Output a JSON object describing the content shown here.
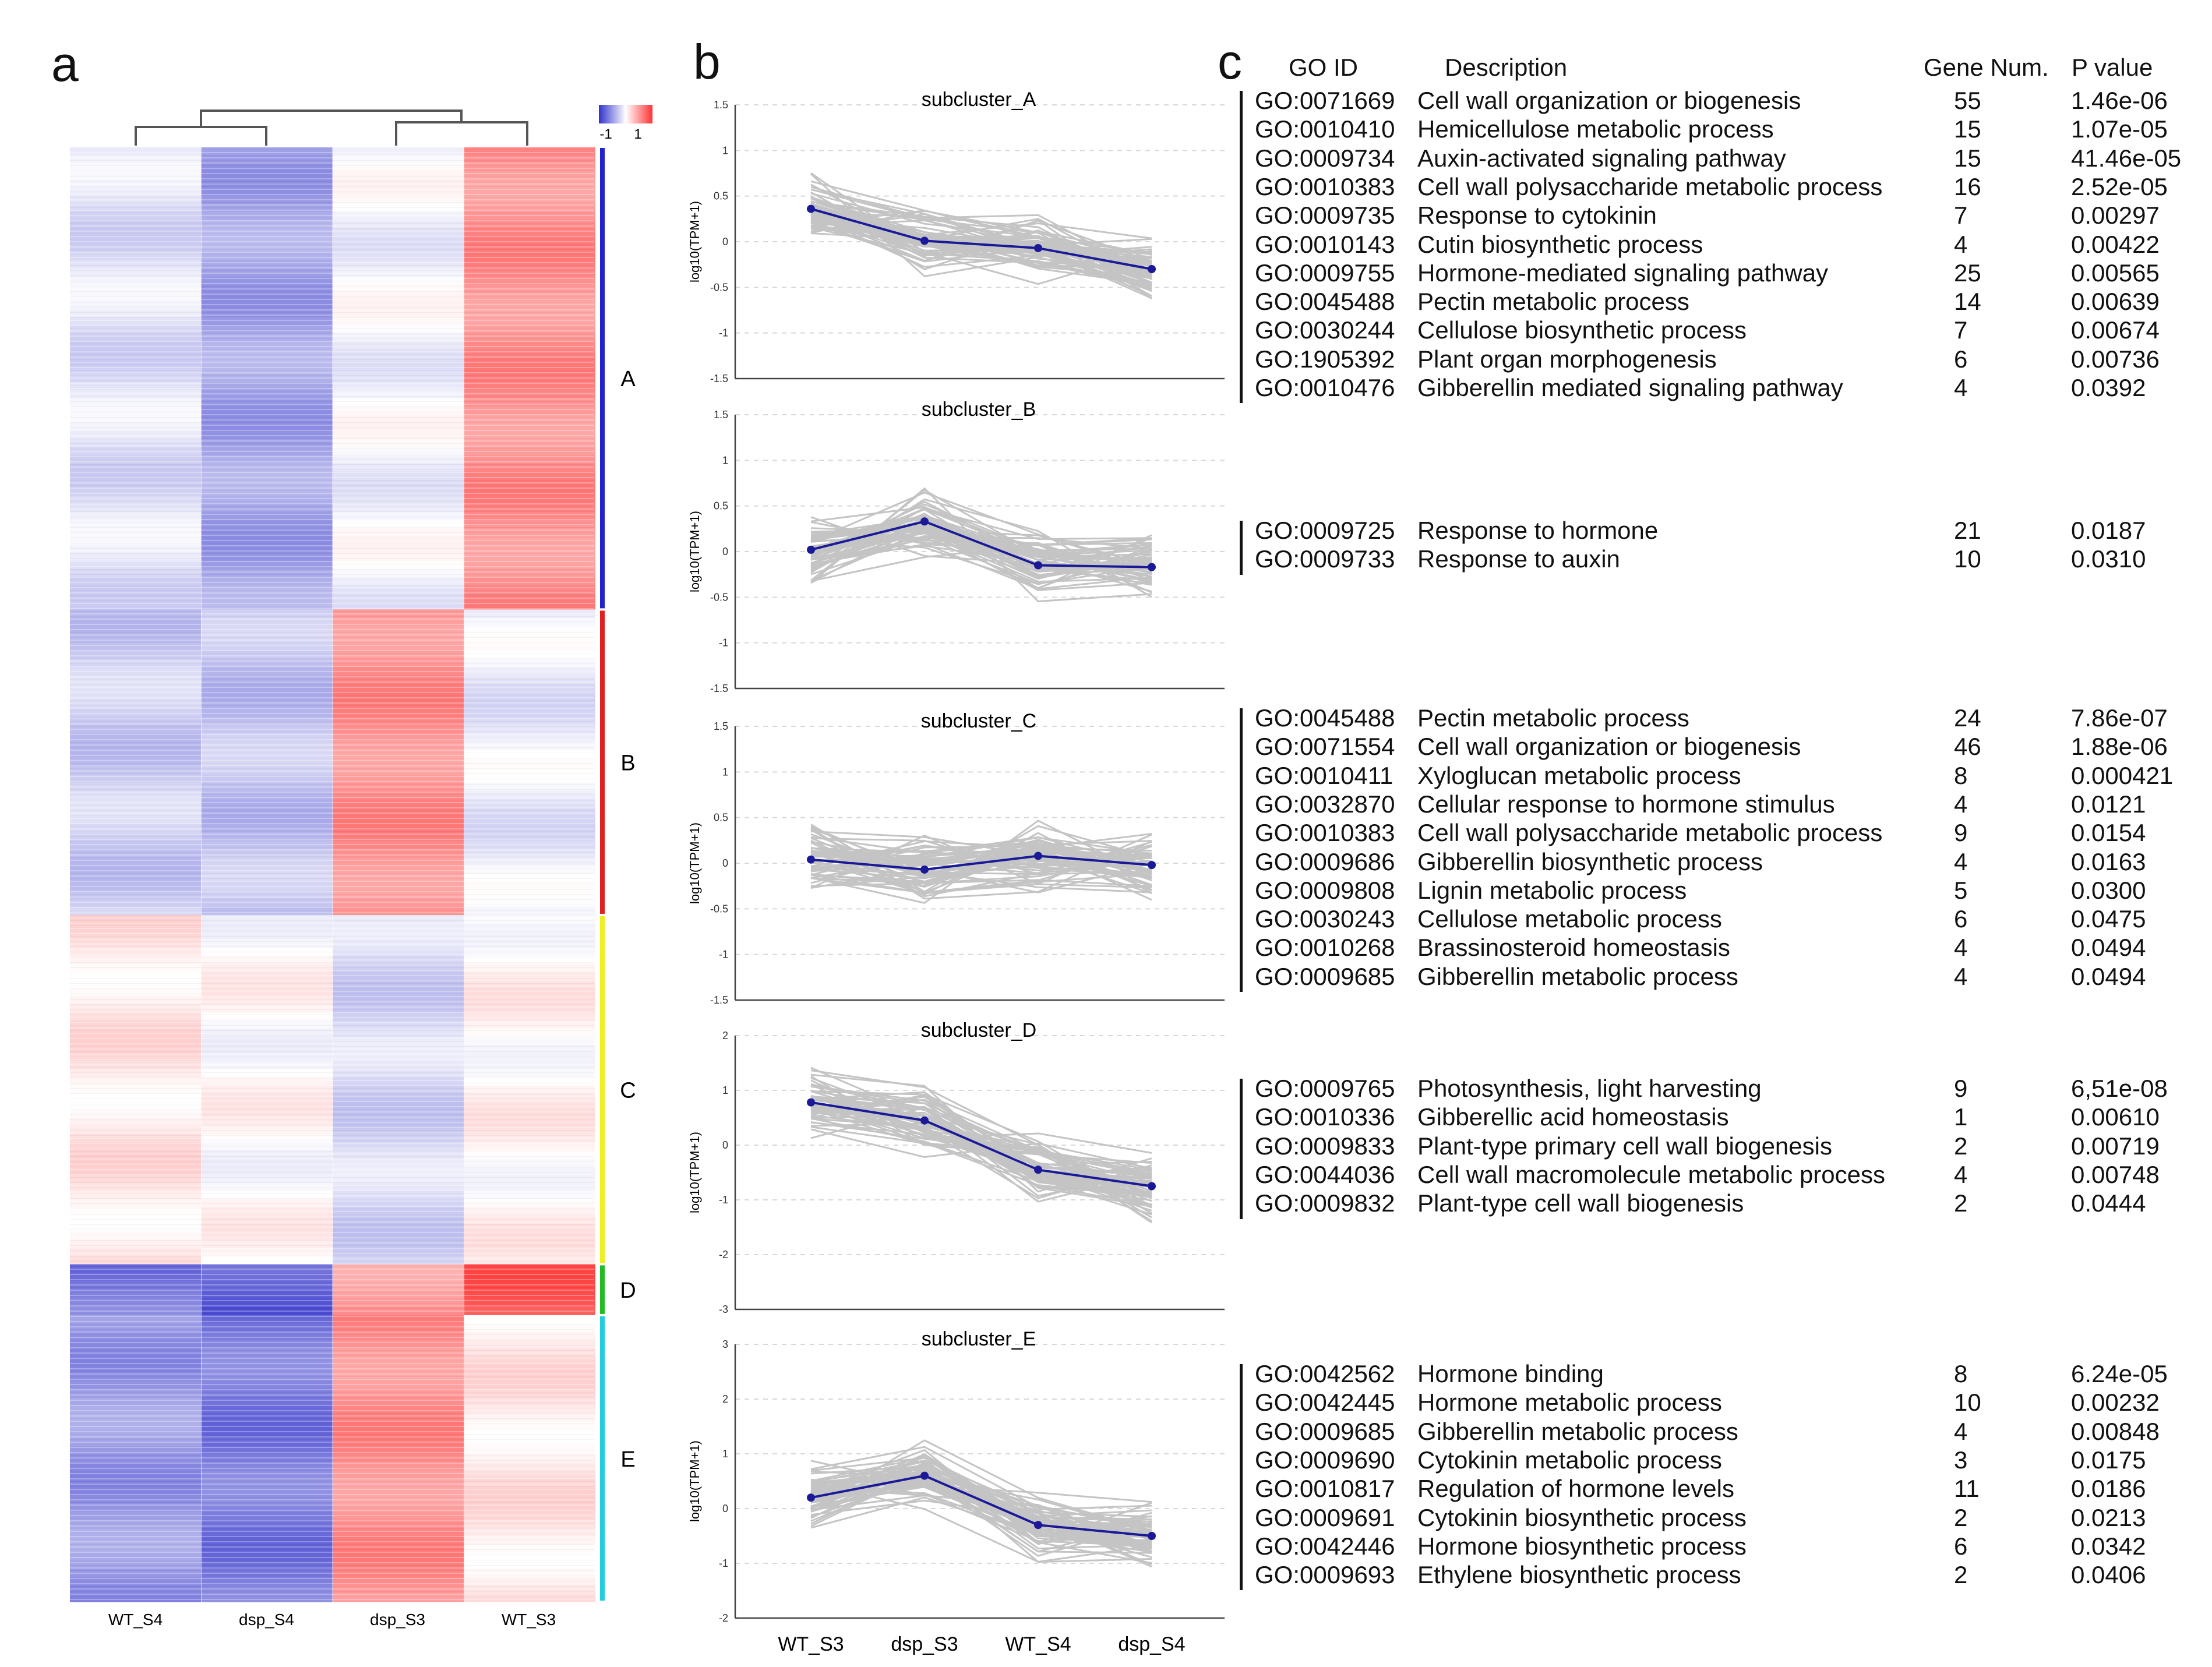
{
  "panel_labels": {
    "a": "a",
    "b": "b",
    "c": "c"
  },
  "heatmap": {
    "columns": [
      "WT_S4",
      "dsp_S4",
      "dsp_S3",
      "WT_S3"
    ],
    "colorbar": {
      "min_label": "-1",
      "max_label": "1",
      "low_color": "#3333cc",
      "mid_color": "#ffffff",
      "high_color": "#ff3333"
    },
    "cluster_labels": [
      "A",
      "B",
      "C",
      "D",
      "E"
    ],
    "cluster_colors": [
      "#2222cc",
      "#dd2222",
      "#eeee22",
      "#22bb22",
      "#22ccdd"
    ],
    "cluster_row_fraction": [
      0.318,
      0.21,
      0.24,
      0.035,
      0.197
    ],
    "cluster_mean_values": [
      [
        -0.15,
        -0.45,
        -0.05,
        0.55
      ],
      [
        -0.25,
        -0.3,
        0.55,
        -0.1
      ],
      [
        0.12,
        0.02,
        -0.2,
        0.05
      ],
      [
        -0.65,
        -0.8,
        0.5,
        0.8
      ],
      [
        -0.5,
        -0.65,
        0.55,
        0.12
      ]
    ]
  },
  "chart_data": [
    {
      "type": "line",
      "title": "subcluster_A",
      "ylabel": "log10(TPM+1)",
      "x": [
        "WT_S3",
        "dsp_S3",
        "WT_S4",
        "dsp_S4"
      ],
      "mean": [
        0.36,
        0.01,
        -0.07,
        -0.3
      ],
      "ylim": [
        -1.5,
        1.5
      ],
      "yticks": [
        "1.5",
        "1",
        "0.5",
        "0",
        "-0.5",
        "-1",
        "-1.5"
      ],
      "show_xticks": false
    },
    {
      "type": "line",
      "title": "subcluster_B",
      "ylabel": "log10(TPM+1)",
      "x": [
        "WT_S3",
        "dsp_S3",
        "WT_S4",
        "dsp_S4"
      ],
      "mean": [
        0.02,
        0.33,
        -0.15,
        -0.17
      ],
      "ylim": [
        -1.5,
        1.5
      ],
      "yticks": [
        "1.5",
        "1",
        "0.5",
        "0",
        "-0.5",
        "-1",
        "-1.5"
      ],
      "show_xticks": false
    },
    {
      "type": "line",
      "title": "subcluster_C",
      "ylabel": "log10(TPM+1)",
      "x": [
        "WT_S3",
        "dsp_S3",
        "WT_S4",
        "dsp_S4"
      ],
      "mean": [
        0.04,
        -0.07,
        0.08,
        -0.02
      ],
      "ylim": [
        -1.5,
        1.5
      ],
      "yticks": [
        "1.5",
        "1",
        "0.5",
        "0",
        "-0.5",
        "-1",
        "-1.5"
      ],
      "show_xticks": false
    },
    {
      "type": "line",
      "title": "subcluster_D",
      "ylabel": "log10(TPM+1)",
      "x": [
        "WT_S3",
        "dsp_S3",
        "WT_S4",
        "dsp_S4"
      ],
      "mean": [
        0.78,
        0.45,
        -0.45,
        -0.75
      ],
      "ylim": [
        -3,
        2
      ],
      "yticks": [
        "2",
        "1",
        "0",
        "-1",
        "-2",
        "-3"
      ],
      "show_xticks": false
    },
    {
      "type": "line",
      "title": "subcluster_E",
      "ylabel": "log10(TPM+1)",
      "x": [
        "WT_S3",
        "dsp_S3",
        "WT_S4",
        "dsp_S4"
      ],
      "mean": [
        0.2,
        0.6,
        -0.3,
        -0.5
      ],
      "ylim": [
        -2,
        3
      ],
      "yticks": [
        "3",
        "2",
        "1",
        "0",
        "-1",
        "-2"
      ],
      "show_xticks": true
    }
  ],
  "go_table": {
    "headers": {
      "id": "GO ID",
      "desc": "Description",
      "num": "Gene Num.",
      "p": "P value"
    },
    "groups": [
      [
        {
          "id": "GO:0071669",
          "desc": "Cell wall organization or biogenesis",
          "num": "55",
          "p": "1.46e-06"
        },
        {
          "id": "GO:0010410",
          "desc": "Hemicellulose metabolic process",
          "num": "15",
          "p": "1.07e-05"
        },
        {
          "id": "GO:0009734",
          "desc": "Auxin-activated signaling pathway",
          "num": "15",
          "p": "41.46e-05"
        },
        {
          "id": "GO:0010383",
          "desc": "Cell wall polysaccharide metabolic process",
          "num": "16",
          "p": "2.52e-05"
        },
        {
          "id": "GO:0009735",
          "desc": "Response to cytokinin",
          "num": "7",
          "p": "0.00297"
        },
        {
          "id": "GO:0010143",
          "desc": "Cutin biosynthetic process",
          "num": "4",
          "p": "0.00422"
        },
        {
          "id": "GO:0009755",
          "desc": "Hormone-mediated signaling pathway",
          "num": "25",
          "p": "0.00565"
        },
        {
          "id": "GO:0045488",
          "desc": "Pectin metabolic process",
          "num": "14",
          "p": "0.00639"
        },
        {
          "id": "GO:0030244",
          "desc": "Cellulose biosynthetic process",
          "num": "7",
          "p": "0.00674"
        },
        {
          "id": "GO:1905392",
          "desc": "Plant organ morphogenesis",
          "num": "6",
          "p": "0.00736"
        },
        {
          "id": "GO:0010476",
          "desc": "Gibberellin mediated signaling pathway",
          "num": "4",
          "p": "0.0392"
        }
      ],
      [
        {
          "id": "GO:0009725",
          "desc": "Response to hormone",
          "num": "21",
          "p": "0.0187"
        },
        {
          "id": "GO:0009733",
          "desc": "Response to auxin",
          "num": "10",
          "p": "0.0310"
        }
      ],
      [
        {
          "id": "GO:0045488",
          "desc": "Pectin metabolic process",
          "num": "24",
          "p": "7.86e-07"
        },
        {
          "id": "GO:0071554",
          "desc": "Cell wall organization or biogenesis",
          "num": "46",
          "p": "1.88e-06"
        },
        {
          "id": "GO:0010411",
          "desc": "Xyloglucan metabolic process",
          "num": "8",
          "p": "0.000421"
        },
        {
          "id": "GO:0032870",
          "desc": "Cellular response to hormone stimulus",
          "num": "4",
          "p": "0.0121"
        },
        {
          "id": "GO:0010383",
          "desc": "Cell wall polysaccharide metabolic process",
          "num": "9",
          "p": "0.0154"
        },
        {
          "id": "GO:0009686",
          "desc": "Gibberellin biosynthetic process",
          "num": "4",
          "p": "0.0163"
        },
        {
          "id": "GO:0009808",
          "desc": "Lignin metabolic process",
          "num": "5",
          "p": "0.0300"
        },
        {
          "id": "GO:0030243",
          "desc": "Cellulose metabolic process",
          "num": "6",
          "p": "0.0475"
        },
        {
          "id": "GO:0010268",
          "desc": "Brassinosteroid homeostasis",
          "num": "4",
          "p": "0.0494"
        },
        {
          "id": "GO:0009685",
          "desc": "Gibberellin metabolic process",
          "num": "4",
          "p": "0.0494"
        }
      ],
      [
        {
          "id": "GO:0009765",
          "desc": "Photosynthesis, light harvesting",
          "num": "9",
          "p": "6,51e-08"
        },
        {
          "id": "GO:0010336",
          "desc": "Gibberellic acid homeostasis",
          "num": "1",
          "p": "0.00610"
        },
        {
          "id": "GO:0009833",
          "desc": "Plant-type primary cell wall biogenesis",
          "num": "2",
          "p": "0.00719"
        },
        {
          "id": "GO:0044036",
          "desc": "Cell wall macromolecule metabolic process",
          "num": "4",
          "p": "0.00748"
        },
        {
          "id": "GO:0009832",
          "desc": "Plant-type cell wall biogenesis",
          "num": "2",
          "p": "0.0444"
        }
      ],
      [
        {
          "id": "GO:0042562",
          "desc": "Hormone binding",
          "num": "8",
          "p": "6.24e-05"
        },
        {
          "id": "GO:0042445",
          "desc": "Hormone metabolic process",
          "num": "10",
          "p": "0.00232"
        },
        {
          "id": "GO:0009685",
          "desc": "Gibberellin metabolic process",
          "num": "4",
          "p": "0.00848"
        },
        {
          "id": "GO:0009690",
          "desc": "Cytokinin metabolic process",
          "num": "3",
          "p": "0.0175"
        },
        {
          "id": "GO:0010817",
          "desc": "Regulation of hormone levels",
          "num": "11",
          "p": "0.0186"
        },
        {
          "id": "GO:0009691",
          "desc": "Cytokinin biosynthetic process",
          "num": "2",
          "p": "0.0213"
        },
        {
          "id": "GO:0042446",
          "desc": "Hormone biosynthetic process",
          "num": "6",
          "p": "0.0342"
        },
        {
          "id": "GO:0009693",
          "desc": "Ethylene biosynthetic process",
          "num": "2",
          "p": "0.0406"
        }
      ]
    ]
  }
}
